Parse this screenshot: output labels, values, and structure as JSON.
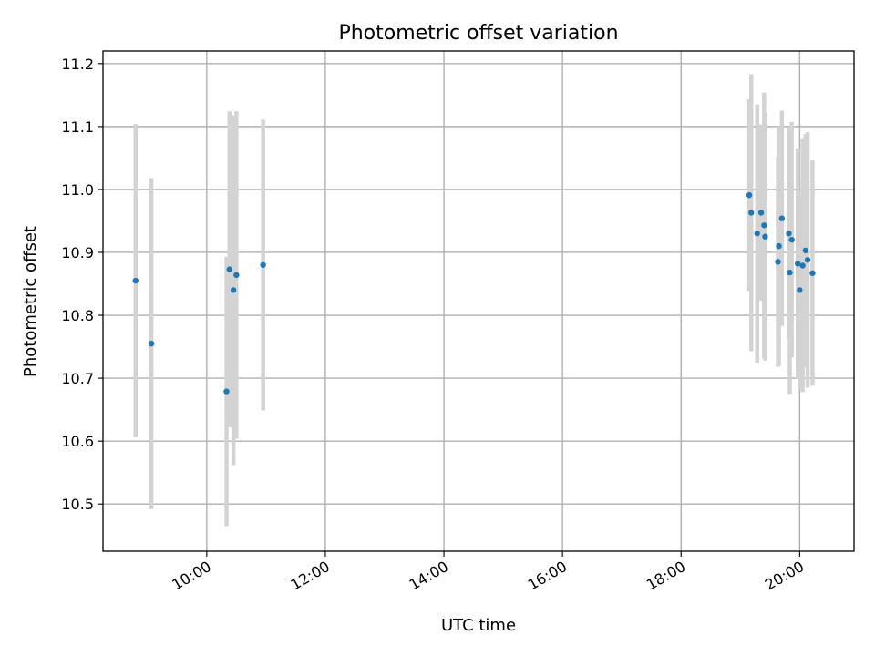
{
  "chart_data": {
    "type": "scatter",
    "title": "Photometric offset variation",
    "xlabel": "UTC time",
    "ylabel": "Photometric offset",
    "x_axis_kind": "time",
    "xlim": [
      "08:15",
      "20:55"
    ],
    "ylim": [
      10.425,
      11.22
    ],
    "xticks": [
      "10:00",
      "12:00",
      "14:00",
      "16:00",
      "18:00",
      "20:00"
    ],
    "yticks": [
      10.5,
      10.6,
      10.7,
      10.8,
      10.9,
      11.0,
      11.1,
      11.2
    ],
    "grid": true,
    "legend": "none",
    "marker_color": "#1f77b4",
    "errorbar_color": "#d3d3d3",
    "series": [
      {
        "points": [
          {
            "x": "08:48",
            "y": 10.855,
            "lo": 10.606,
            "hi": 11.104
          },
          {
            "x": "09:04",
            "y": 10.755,
            "lo": 10.492,
            "hi": 11.018
          },
          {
            "x": "10:20",
            "y": 10.679,
            "lo": 10.465,
            "hi": 10.893
          },
          {
            "x": "10:23",
            "y": 10.873,
            "lo": 10.622,
            "hi": 11.124
          },
          {
            "x": "10:27",
            "y": 10.84,
            "lo": 10.562,
            "hi": 11.118
          },
          {
            "x": "10:30",
            "y": 10.864,
            "lo": 10.604,
            "hi": 11.124
          },
          {
            "x": "10:57",
            "y": 10.88,
            "lo": 10.649,
            "hi": 11.111
          },
          {
            "x": "19:09",
            "y": 10.991,
            "lo": 10.839,
            "hi": 11.143
          },
          {
            "x": "19:11",
            "y": 10.963,
            "lo": 10.743,
            "hi": 11.183
          },
          {
            "x": "19:17",
            "y": 10.93,
            "lo": 10.725,
            "hi": 11.135
          },
          {
            "x": "19:21",
            "y": 10.963,
            "lo": 10.823,
            "hi": 11.103
          },
          {
            "x": "19:24",
            "y": 10.943,
            "lo": 10.732,
            "hi": 11.154
          },
          {
            "x": "19:25",
            "y": 10.925,
            "lo": 10.728,
            "hi": 11.122
          },
          {
            "x": "19:38",
            "y": 10.885,
            "lo": 10.718,
            "hi": 11.052
          },
          {
            "x": "19:39",
            "y": 10.91,
            "lo": 10.72,
            "hi": 11.1
          },
          {
            "x": "19:42",
            "y": 10.954,
            "lo": 10.783,
            "hi": 11.125
          },
          {
            "x": "19:49",
            "y": 10.93,
            "lo": 10.762,
            "hi": 11.098
          },
          {
            "x": "19:50",
            "y": 10.868,
            "lo": 10.675,
            "hi": 11.061
          },
          {
            "x": "19:52",
            "y": 10.92,
            "lo": 10.733,
            "hi": 11.107
          },
          {
            "x": "19:58",
            "y": 10.882,
            "lo": 10.699,
            "hi": 11.065
          },
          {
            "x": "20:00",
            "y": 10.84,
            "lo": 10.683,
            "hi": 10.997
          },
          {
            "x": "20:03",
            "y": 10.879,
            "lo": 10.678,
            "hi": 11.08
          },
          {
            "x": "20:06",
            "y": 10.903,
            "lo": 10.718,
            "hi": 11.088
          },
          {
            "x": "20:08",
            "y": 10.888,
            "lo": 10.685,
            "hi": 11.091
          },
          {
            "x": "20:13",
            "y": 10.867,
            "lo": 10.688,
            "hi": 11.046
          }
        ]
      }
    ]
  }
}
